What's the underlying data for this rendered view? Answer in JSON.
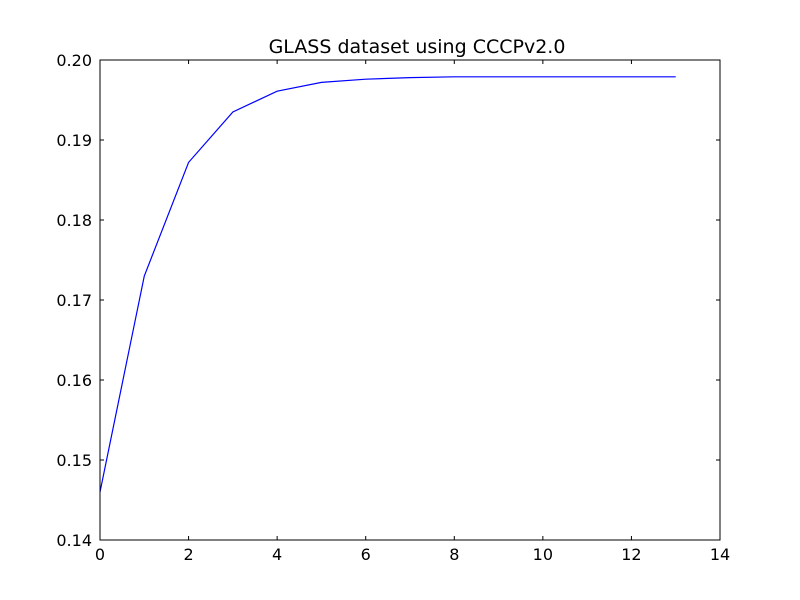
{
  "chart_data": {
    "type": "line",
    "title": "GLASS dataset using CCCPv2.0",
    "xlabel": "",
    "ylabel": "",
    "xlim": [
      0,
      14
    ],
    "ylim": [
      0.14,
      0.2
    ],
    "xticks": [
      0,
      2,
      4,
      6,
      8,
      10,
      12,
      14
    ],
    "yticks": [
      0.14,
      0.15,
      0.16,
      0.17,
      0.18,
      0.19,
      0.2
    ],
    "xtick_labels": [
      "0",
      "2",
      "4",
      "6",
      "8",
      "10",
      "12",
      "14"
    ],
    "ytick_labels": [
      "0.14",
      "0.15",
      "0.16",
      "0.17",
      "0.18",
      "0.19",
      "0.20"
    ],
    "grid": false,
    "series": [
      {
        "color": "#0000ff",
        "x": [
          0,
          1,
          2,
          3,
          4,
          5,
          6,
          7,
          8,
          9,
          10,
          11,
          12,
          13
        ],
        "y": [
          0.146,
          0.173,
          0.1872,
          0.1935,
          0.1961,
          0.1972,
          0.1976,
          0.1978,
          0.1979,
          0.1979,
          0.1979,
          0.1979,
          0.1979,
          0.1979
        ]
      }
    ]
  }
}
